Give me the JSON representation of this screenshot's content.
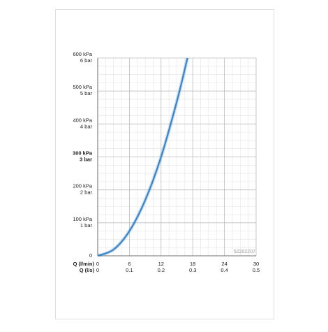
{
  "chart_data": {
    "type": "line",
    "x": [
      0,
      3,
      6,
      9,
      12,
      15,
      17
    ],
    "series": [
      {
        "color": "#3a85c8",
        "values": [
          0,
          19,
          75,
          169,
          300,
          469,
          600
        ]
      }
    ],
    "xlim": [
      0,
      30
    ],
    "xticks": [
      0,
      6,
      12,
      18,
      24,
      30
    ],
    "xticks_ls": [
      0,
      0.1,
      0.2,
      0.3,
      0.4,
      0.5
    ],
    "xlabel": "Q (l/min)",
    "xlabel_ls": "Q (l/s)",
    "ylim": [
      0,
      600
    ],
    "yticks": [
      0,
      {
        "value": 100,
        "label": "100 kPa"
      },
      {
        "value": 200,
        "label": "200 kPa"
      },
      {
        "value": 300,
        "label": "300 kPa"
      },
      {
        "value": 400,
        "label": "400 kPa"
      },
      {
        "value": 500,
        "label": "500 kPa"
      },
      {
        "value": 600,
        "label": "600 kPa"
      }
    ],
    "ytick_bar_labels": [
      null,
      "1 bar",
      "2 bar",
      "3 bar",
      "4 bar",
      "5 bar",
      "6 bar"
    ],
    "emphasized_ytick": 300,
    "grid": true,
    "minor_divisions": 4,
    "annotation": "52202207"
  }
}
